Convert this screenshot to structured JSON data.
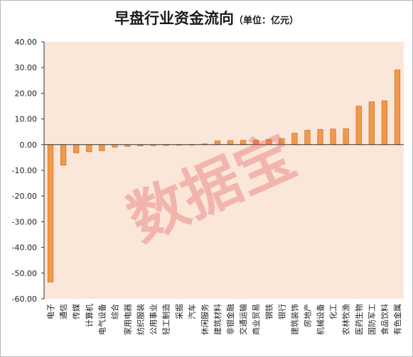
{
  "chart_data": {
    "type": "bar",
    "title": "早盘行业资金流向",
    "title_unit": "（单位：亿元）",
    "xlabel": "",
    "ylabel": "",
    "ylim": [
      -60,
      40
    ],
    "yticks": [
      "40.00",
      "30.00",
      "20.00",
      "10.00",
      "0.00",
      "-10.00",
      "-20.00",
      "-30.00",
      "-40.00",
      "-50.00",
      "-60.00"
    ],
    "grid": false,
    "bar_color": "#f0994a",
    "bar_border": "#c46a1c",
    "plot_background": "#fbe6da",
    "categories": [
      "电子",
      "通信",
      "传媒",
      "计算机",
      "电气设备",
      "综合",
      "家用电器",
      "纺织服装",
      "公用事业",
      "轻工制造",
      "采掘",
      "汽车",
      "休闲服务",
      "建筑材料",
      "非银金融",
      "交通运输",
      "商业贸易",
      "钢铁",
      "银行",
      "建筑装饰",
      "房地产",
      "机械设备",
      "化工",
      "农林牧渔",
      "医药生物",
      "国防军工",
      "食品饮料",
      "有色金属"
    ],
    "values": [
      -53.5,
      -8.0,
      -3.2,
      -2.8,
      -2.4,
      -1.0,
      -0.7,
      -0.5,
      -0.4,
      -0.3,
      -0.2,
      -0.2,
      0.3,
      1.5,
      1.6,
      1.7,
      1.8,
      2.0,
      2.4,
      4.5,
      5.6,
      5.9,
      6.1,
      6.2,
      15.0,
      16.7,
      17.1,
      29.1
    ]
  },
  "watermark": "数据宝"
}
